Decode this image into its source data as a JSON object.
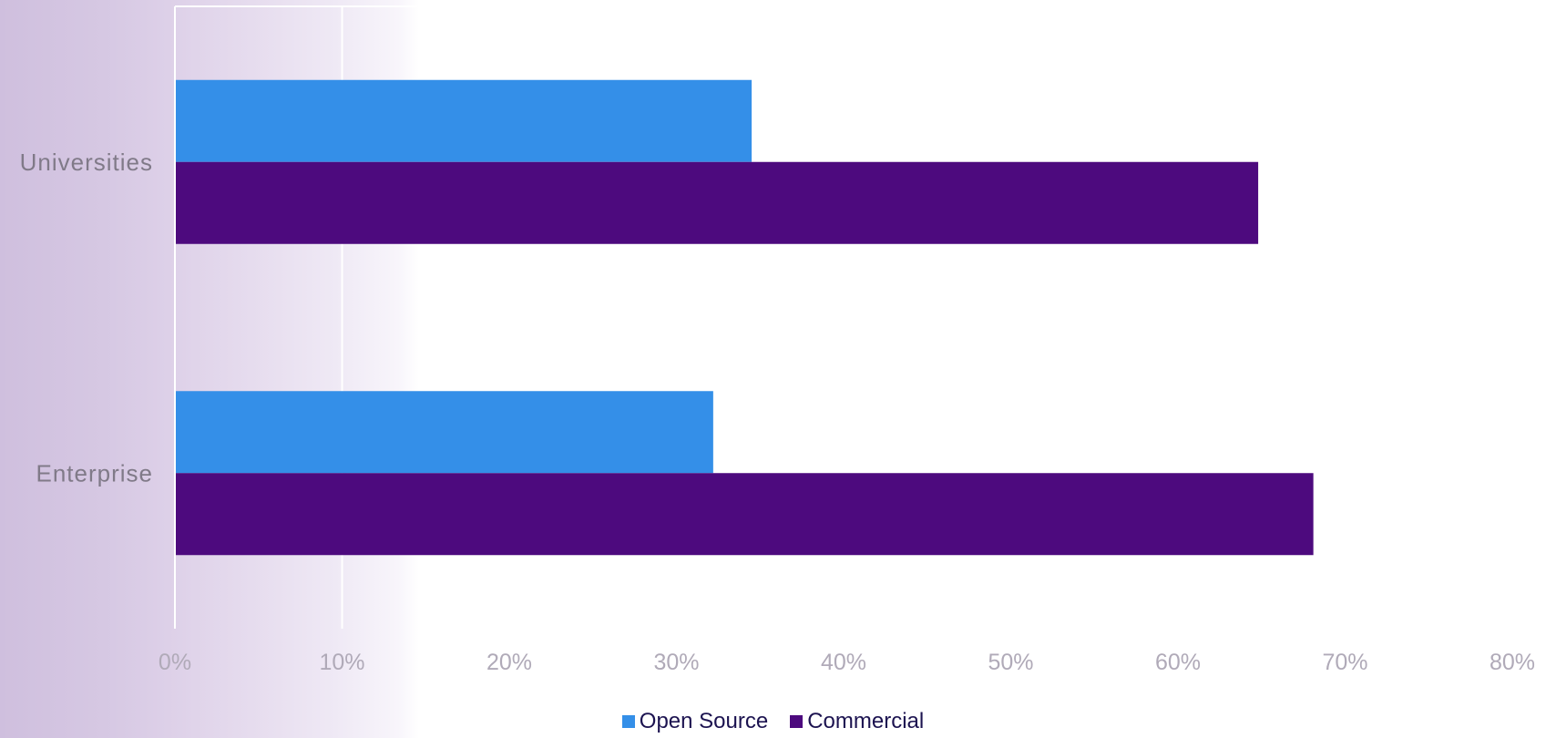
{
  "chart_data": {
    "type": "bar",
    "orientation": "horizontal",
    "categories": [
      "Universities",
      "Enterprise"
    ],
    "series": [
      {
        "name": "Open Source",
        "values": [
          34.5,
          32.2
        ],
        "color": "#348fe8"
      },
      {
        "name": "Commercial",
        "values": [
          64.8,
          68.1
        ],
        "color": "#4d0a7e"
      }
    ],
    "xlim": [
      0,
      80
    ],
    "xticks": [
      "0%",
      "10%",
      "20%",
      "30%",
      "40%",
      "50%",
      "60%",
      "70%",
      "80%"
    ],
    "tick_step": 10,
    "title": "",
    "xlabel": "",
    "ylabel": "",
    "grid": true,
    "legend_position": "bottom"
  }
}
